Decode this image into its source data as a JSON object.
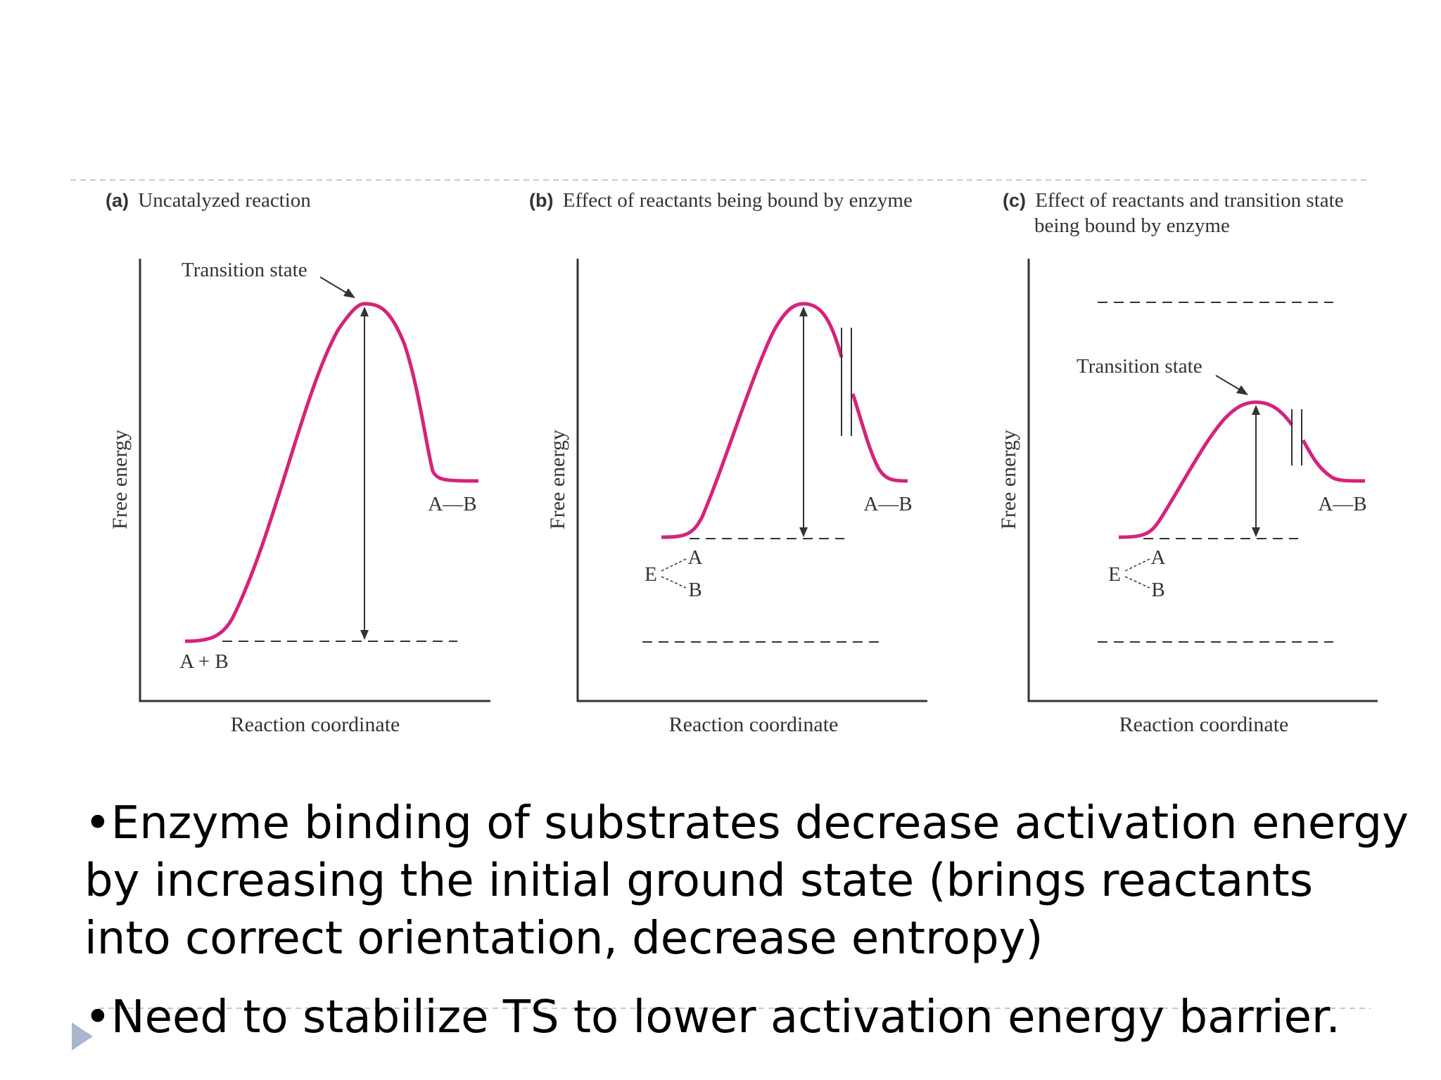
{
  "panels": [
    {
      "letter": "(a)",
      "title_lines": [
        "Uncatalyzed reaction"
      ],
      "transition_label": "Transition state",
      "product_label": "A—B",
      "reactant_label": "A + B",
      "y_axis": "Free energy",
      "x_axis": "Reaction coordinate"
    },
    {
      "letter": "(b)",
      "title_lines": [
        "Effect of reactants being bound by enzyme"
      ],
      "product_label": "A—B",
      "complex": {
        "e": "E",
        "a": "A",
        "b": "B"
      },
      "y_axis": "Free energy",
      "x_axis": "Reaction coordinate"
    },
    {
      "letter": "(c)",
      "title_lines": [
        "Effect of reactants and transition state",
        "being bound by enzyme"
      ],
      "transition_label": "Transition state",
      "product_label": "A—B",
      "complex": {
        "e": "E",
        "a": "A",
        "b": "B"
      },
      "y_axis": "Free energy",
      "x_axis": "Reaction coordinate"
    }
  ],
  "bullets": {
    "first_lines": [
      "•Enzyme binding of substrates decrease activation energy",
      "by increasing the initial ground state (brings reactants",
      "into correct orientation, decrease entropy)"
    ],
    "second": "•Need to stabilize TS to lower activation energy barrier."
  },
  "colors": {
    "curve": "#d6237a",
    "ink": "#333333",
    "divider": "#c8c8d0",
    "arrow": "#a9b6cf"
  }
}
